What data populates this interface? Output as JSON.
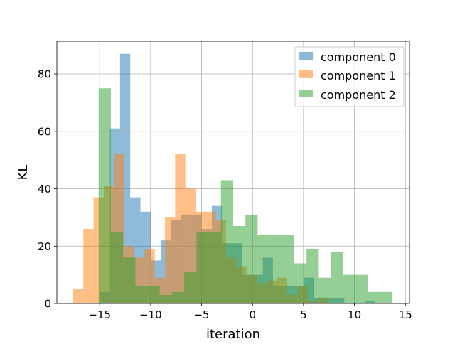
{
  "chart_data": {
    "type": "histogram",
    "title": "",
    "xlabel": "iteration",
    "ylabel": "KL",
    "xlim": [
      -19.2,
      15.4
    ],
    "ylim": [
      0,
      91.4
    ],
    "xticks": [
      -15,
      -10,
      -5,
      0,
      5,
      10,
      15
    ],
    "xtick_labels": [
      "−15",
      "−10",
      "−5",
      "0",
      "5",
      "10",
      "15"
    ],
    "yticks": [
      0,
      20,
      40,
      60,
      80
    ],
    "ytick_labels": [
      "0",
      "20",
      "40",
      "60",
      "80"
    ],
    "grid": true,
    "legend": {
      "placement": "top-right"
    },
    "alpha": 0.5,
    "series": [
      {
        "name": "component 0",
        "color": "#1f77b4",
        "bins": [
          [
            -15.0,
            -14.0,
            4
          ],
          [
            -14.0,
            -13.0,
            61
          ],
          [
            -13.0,
            -12.0,
            87
          ],
          [
            -12.0,
            -11.0,
            37
          ],
          [
            -11.0,
            -10.0,
            32
          ],
          [
            -10.0,
            -9.0,
            15
          ],
          [
            -9.0,
            -8.0,
            22
          ],
          [
            -8.0,
            -7.0,
            29
          ],
          [
            -7.0,
            -6.0,
            31
          ],
          [
            -6.0,
            -5.0,
            31
          ],
          [
            -5.0,
            -4.0,
            26
          ],
          [
            -4.0,
            -3.0,
            34
          ],
          [
            -3.0,
            -2.0,
            21
          ],
          [
            -2.0,
            -1.0,
            21
          ],
          [
            -1.0,
            0.0,
            10
          ],
          [
            0.0,
            1.0,
            10
          ],
          [
            1.0,
            2.0,
            16
          ],
          [
            2.0,
            3.0,
            6
          ],
          [
            3.0,
            4.0,
            6
          ],
          [
            4.0,
            5.0,
            6
          ],
          [
            5.0,
            6.0,
            9
          ],
          [
            6.0,
            7.0,
            2
          ],
          [
            7.0,
            8.0,
            2
          ],
          [
            8.0,
            9.0,
            2
          ],
          [
            11.0,
            12.0,
            1
          ]
        ]
      },
      {
        "name": "component 1",
        "color": "#ff7f0e",
        "bins": [
          [
            -17.6,
            -16.6,
            5
          ],
          [
            -16.6,
            -15.6,
            26
          ],
          [
            -15.6,
            -14.6,
            37
          ],
          [
            -14.6,
            -13.6,
            41
          ],
          [
            -13.6,
            -12.6,
            52
          ],
          [
            -12.6,
            -11.6,
            20
          ],
          [
            -11.6,
            -10.6,
            16
          ],
          [
            -10.6,
            -9.6,
            19
          ],
          [
            -9.6,
            -8.6,
            9
          ],
          [
            -8.6,
            -7.6,
            30
          ],
          [
            -7.6,
            -6.6,
            52
          ],
          [
            -6.6,
            -5.6,
            40
          ],
          [
            -5.6,
            -4.6,
            32
          ],
          [
            -4.6,
            -3.6,
            32
          ],
          [
            -3.6,
            -2.6,
            29
          ],
          [
            -2.6,
            -1.6,
            16
          ],
          [
            -1.6,
            -0.6,
            13
          ],
          [
            -0.6,
            0.4,
            10
          ],
          [
            0.4,
            1.4,
            7
          ],
          [
            1.4,
            2.4,
            8
          ],
          [
            2.4,
            3.4,
            9
          ],
          [
            3.4,
            4.4,
            3
          ],
          [
            4.4,
            5.4,
            6
          ],
          [
            5.4,
            6.4,
            1
          ],
          [
            6.4,
            7.4,
            2
          ]
        ]
      },
      {
        "name": "component 2",
        "color": "#2ca02c",
        "bins": [
          [
            -15.1,
            -13.9,
            75
          ],
          [
            -13.9,
            -12.7,
            25
          ],
          [
            -12.7,
            -11.5,
            16
          ],
          [
            -11.5,
            -10.3,
            6
          ],
          [
            -10.3,
            -9.1,
            6
          ],
          [
            -9.1,
            -7.9,
            3
          ],
          [
            -7.9,
            -6.7,
            4
          ],
          [
            -6.7,
            -5.5,
            11
          ],
          [
            -5.5,
            -4.3,
            25
          ],
          [
            -4.3,
            -3.1,
            25
          ],
          [
            -3.1,
            -1.9,
            43
          ],
          [
            -1.9,
            -0.7,
            27
          ],
          [
            -0.7,
            0.5,
            31
          ],
          [
            0.5,
            1.7,
            24
          ],
          [
            1.7,
            2.9,
            24
          ],
          [
            2.9,
            4.1,
            24
          ],
          [
            4.1,
            5.3,
            14
          ],
          [
            5.3,
            6.5,
            19
          ],
          [
            6.5,
            7.7,
            9
          ],
          [
            7.7,
            8.9,
            18
          ],
          [
            8.9,
            10.1,
            10
          ],
          [
            10.1,
            11.3,
            10
          ],
          [
            11.3,
            12.5,
            4
          ],
          [
            12.5,
            13.7,
            4
          ]
        ]
      }
    ]
  }
}
